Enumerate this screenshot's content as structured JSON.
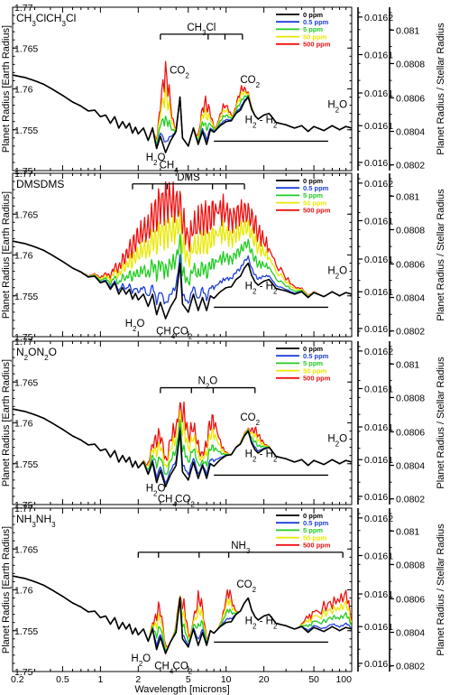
{
  "chart_data": {
    "type": "line",
    "xlabel": "Wavelength [microns]",
    "xscale": "log",
    "xlim": [
      0.2,
      100
    ],
    "x_ticks": [
      "0.2",
      "0.5",
      "1",
      "2",
      "5",
      "10",
      "20",
      "50",
      "100"
    ],
    "x_tick_values": [
      0.2,
      0.5,
      1,
      2,
      5,
      10,
      20,
      50,
      100
    ],
    "ylabel_left": "Planet Radius [Earth Radius]",
    "ylabel_right": "Planet Radius / Stellar Radius",
    "ylim": [
      1.75,
      1.77
    ],
    "y_ticks": [
      "1.75",
      "1.755",
      "1.76",
      "1.765",
      "1.77"
    ],
    "y_tick_values": [
      1.75,
      1.755,
      1.76,
      1.765,
      1.77
    ],
    "right_inner_ticks": [
      "0.016",
      "0.0161",
      "0.0161",
      "0.0161",
      "0.0162"
    ],
    "right_inner_values": [
      1.751,
      1.7555,
      1.7595,
      1.7642,
      1.7688
    ],
    "right_outer_ticks": [
      "0.0802",
      "0.0804",
      "0.0806",
      "0.0808",
      "0.081"
    ],
    "right_outer_values": [
      1.7507,
      1.7548,
      1.7589,
      1.7631,
      1.7672
    ],
    "legend_placement": "top-right",
    "legend": [
      {
        "name": "0 ppm",
        "color": "#000000"
      },
      {
        "name": "0.5 ppm",
        "color": "#1f3fd6"
      },
      {
        "name": "5 ppm",
        "color": "#22cc22"
      },
      {
        "name": "50 ppm",
        "color": "#e8e800"
      },
      {
        "name": "500 ppm",
        "color": "#ee1111"
      }
    ],
    "baseline_spectrum": {
      "x": [
        0.2,
        0.25,
        0.3,
        0.35,
        0.4,
        0.5,
        0.6,
        0.7,
        0.8,
        0.9,
        1.0,
        1.1,
        1.2,
        1.3,
        1.4,
        1.5,
        1.6,
        1.7,
        1.8,
        1.9,
        2.0,
        2.2,
        2.4,
        2.6,
        2.8,
        3.0,
        3.3,
        3.6,
        4.0,
        4.3,
        4.5,
        5.0,
        5.5,
        6.0,
        6.5,
        7.0,
        7.5,
        8.0,
        9.0,
        10,
        11,
        12,
        13,
        14,
        15,
        16,
        17,
        18,
        20,
        22,
        25,
        30,
        35,
        40,
        45,
        50,
        60,
        70,
        80,
        90,
        100
      ],
      "y": [
        1.7617,
        1.7614,
        1.761,
        1.7606,
        1.7601,
        1.7592,
        1.7584,
        1.7579,
        1.7573,
        1.7574,
        1.7566,
        1.7568,
        1.7558,
        1.7566,
        1.7552,
        1.756,
        1.7552,
        1.7558,
        1.7546,
        1.7553,
        1.7545,
        1.7552,
        1.7537,
        1.7552,
        1.7527,
        1.7542,
        1.7522,
        1.7536,
        1.7548,
        1.759,
        1.754,
        1.753,
        1.7552,
        1.7532,
        1.7548,
        1.7532,
        1.755,
        1.7547,
        1.7555,
        1.756,
        1.7561,
        1.757,
        1.7574,
        1.7584,
        1.759,
        1.7575,
        1.7567,
        1.7563,
        1.7568,
        1.757,
        1.7559,
        1.7556,
        1.7552,
        1.7555,
        1.7548,
        1.7554,
        1.7549,
        1.7555,
        1.755,
        1.7554,
        1.7552
      ]
    },
    "panels": [
      {
        "label": "CH3Cl",
        "label_main": "CH",
        "label_sub": "3",
        "label_tail": "Cl",
        "bracket_label": "CH3Cl",
        "bracket_main": "CH",
        "bracket_sub": "3",
        "bracket_tail": "Cl",
        "bracket_x": [
          3.0,
          13.5
        ],
        "bracket_y": 1.7667,
        "bracket_ticks": [
          3.0,
          7.2,
          9.8,
          13.5
        ],
        "band_peaks": [
          {
            "x": 3.3,
            "y": 1.7637
          },
          {
            "x": 6.9,
            "y": 1.7592
          },
          {
            "x": 9.8,
            "y": 1.7584
          },
          {
            "x": 13.5,
            "y": 1.7605
          }
        ],
        "band_width": 0.035,
        "legend_visible": true,
        "annotations": [
          {
            "main": "CO",
            "sub": "2",
            "x": 4.25,
            "y": 1.7619
          },
          {
            "main": "CO",
            "sub": "2",
            "x": 15.5,
            "y": 1.7607
          },
          {
            "main": "H",
            "sub": "2",
            "tail": "O",
            "x": 2.75,
            "y": 1.7512
          },
          {
            "main": "CH",
            "sub": "4",
            "x": 3.5,
            "y": 1.7503
          },
          {
            "main": "H",
            "sub": "2",
            "tail": "O",
            "x": 77,
            "y": 1.7577
          },
          {
            "main": "H",
            "sub": "2",
            "tail": " - H",
            "sub2": "2",
            "x": 19,
            "y": 1.7558
          }
        ],
        "h2_line": {
          "x": [
            8.0,
            65
          ],
          "y": 1.7536
        }
      },
      {
        "label": "DMS",
        "label_main": "DMS",
        "bracket_label": "DMS",
        "bracket_main": "DMS",
        "bracket_x": [
          1.8,
          14.0
        ],
        "bracket_y": 1.7687,
        "bracket_ticks": [
          1.8,
          2.6,
          3.4,
          7.8,
          10.0,
          14.0
        ],
        "band_peaks": [
          {
            "x": 2.5,
            "y": 1.7651
          },
          {
            "x": 3.4,
            "y": 1.7695
          },
          {
            "x": 4.6,
            "y": 1.7631
          },
          {
            "x": 6.9,
            "y": 1.7668
          },
          {
            "x": 8.8,
            "y": 1.7677
          },
          {
            "x": 10.5,
            "y": 1.7645
          },
          {
            "x": 13.2,
            "y": 1.7668
          },
          {
            "x": 15.0,
            "y": 1.7638
          }
        ],
        "band_width": 0.18,
        "legend_visible": true,
        "annotations": [
          {
            "main": "H",
            "sub": "2",
            "tail": "O",
            "x": 1.88,
            "y": 1.7512
          },
          {
            "main": "CH",
            "sub": "4",
            "x": 3.3,
            "y": 1.7503
          },
          {
            "main": "CO",
            "sub": "2",
            "x": 4.5,
            "y": 1.7503
          },
          {
            "main": "H",
            "sub": "2",
            "tail": "O",
            "x": 77,
            "y": 1.7577
          },
          {
            "main": "H",
            "sub": "2",
            "tail": " - H",
            "sub2": "2",
            "x": 19,
            "y": 1.7558
          }
        ],
        "h2_line": {
          "x": [
            8.0,
            65
          ],
          "y": 1.7536
        }
      },
      {
        "label": "N2O",
        "label_main": "N",
        "label_sub": "2",
        "label_tail": "O",
        "bracket_label": "N2O",
        "bracket_main": "N",
        "bracket_sub": "2",
        "bracket_tail": "O",
        "bracket_x": [
          3.0,
          17.0
        ],
        "bracket_y": 1.7643,
        "bracket_ticks": [
          3.0,
          5.3,
          7.9,
          17.0
        ],
        "band_peaks": [
          {
            "x": 2.9,
            "y": 1.7594
          },
          {
            "x": 3.9,
            "y": 1.7601
          },
          {
            "x": 4.5,
            "y": 1.7628
          },
          {
            "x": 5.4,
            "y": 1.7603
          },
          {
            "x": 7.8,
            "y": 1.7613
          },
          {
            "x": 16.8,
            "y": 1.7596
          }
        ],
        "band_width": 0.05,
        "legend_visible": true,
        "annotations": [
          {
            "main": "CO",
            "sub": "2",
            "x": 15.5,
            "y": 1.7603
          },
          {
            "main": "H",
            "sub": "2",
            "tail": "O",
            "x": 2.75,
            "y": 1.7516
          },
          {
            "main": "CH",
            "sub": "4",
            "x": 3.4,
            "y": 1.7503
          },
          {
            "main": "CO",
            "sub": "2",
            "x": 4.7,
            "y": 1.7503
          },
          {
            "main": "H",
            "sub": "2",
            "tail": "O",
            "x": 77,
            "y": 1.7577
          },
          {
            "main": "H",
            "sub": "2",
            "tail": " - H",
            "sub2": "2",
            "x": 19,
            "y": 1.7558
          }
        ],
        "h2_line": {
          "x": [
            8.0,
            65
          ],
          "y": 1.7536
        }
      },
      {
        "label": "NH3",
        "label_main": "NH",
        "label_sub": "3",
        "bracket_label": "NH3",
        "bracket_main": "NH",
        "bracket_sub": "3",
        "bracket_x": [
          2.0,
          85
        ],
        "bracket_y": 1.7646,
        "bracket_ticks": [
          2.0,
          2.9,
          6.1,
          10.5,
          85
        ],
        "band_peaks": [
          {
            "x": 2.9,
            "y": 1.7586
          },
          {
            "x": 4.5,
            "y": 1.7593
          },
          {
            "x": 6.1,
            "y": 1.7601
          },
          {
            "x": 10.5,
            "y": 1.7605
          },
          {
            "x": 45,
            "y": 1.7572
          },
          {
            "x": 50,
            "y": 1.7577
          },
          {
            "x": 55,
            "y": 1.7582
          },
          {
            "x": 61,
            "y": 1.7587
          },
          {
            "x": 67,
            "y": 1.7592
          },
          {
            "x": 74,
            "y": 1.7596
          },
          {
            "x": 81,
            "y": 1.7601
          },
          {
            "x": 89,
            "y": 1.7605
          }
        ],
        "band_width": 0.03,
        "legend_visible": true,
        "annotations": [
          {
            "main": "CO",
            "sub": "2",
            "x": 14.5,
            "y": 1.7603
          },
          {
            "main": "H",
            "sub": "2",
            "tail": "O",
            "x": 2.1,
            "y": 1.7512
          },
          {
            "main": "CH",
            "sub": "4",
            "x": 3.2,
            "y": 1.7503
          },
          {
            "main": "CO",
            "sub": "2",
            "x": 4.5,
            "y": 1.7503
          },
          {
            "main": "H",
            "sub": "2",
            "tail": " - H",
            "sub2": "2",
            "x": 19,
            "y": 1.7558
          }
        ],
        "h2_line": {
          "x": [
            8.0,
            65
          ],
          "y": 1.7536
        }
      }
    ]
  }
}
